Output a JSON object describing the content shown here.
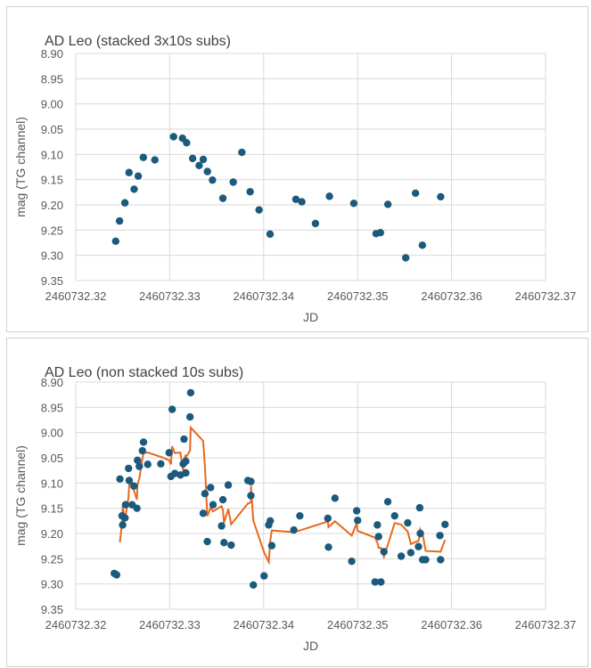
{
  "chart_data": [
    {
      "type": "scatter",
      "title": "AD Leo (stacked 3x10s subs)",
      "xlabel": "JD",
      "ylabel": "mag (TG channel)",
      "xlim": [
        2460732.32,
        2460732.37
      ],
      "ylim": [
        8.9,
        9.35
      ],
      "y_reversed": true,
      "grid": true,
      "xticks": [
        "2460732.32",
        "2460732.33",
        "2460732.34",
        "2460732.35",
        "2460732.36",
        "2460732.37"
      ],
      "yticks": [
        "8.90",
        "8.95",
        "9.00",
        "9.05",
        "9.10",
        "9.15",
        "9.20",
        "9.25",
        "9.30",
        "9.35"
      ],
      "marker_color": "#1b5a7d",
      "x_offset_base": 2460732,
      "points": [
        [
          0.32425,
          9.272
        ],
        [
          0.32466,
          9.232
        ],
        [
          0.32523,
          9.196
        ],
        [
          0.32567,
          9.136
        ],
        [
          0.32621,
          9.169
        ],
        [
          0.32665,
          9.143
        ],
        [
          0.32719,
          9.106
        ],
        [
          0.32842,
          9.111
        ],
        [
          0.33041,
          9.065
        ],
        [
          0.33136,
          9.068
        ],
        [
          0.3318,
          9.077
        ],
        [
          0.33244,
          9.108
        ],
        [
          0.33313,
          9.122
        ],
        [
          0.33357,
          9.11
        ],
        [
          0.33401,
          9.134
        ],
        [
          0.33455,
          9.151
        ],
        [
          0.33566,
          9.187
        ],
        [
          0.33676,
          9.155
        ],
        [
          0.33768,
          9.096
        ],
        [
          0.33856,
          9.174
        ],
        [
          0.33951,
          9.21
        ],
        [
          0.34068,
          9.258
        ],
        [
          0.34343,
          9.189
        ],
        [
          0.34406,
          9.194
        ],
        [
          0.34551,
          9.237
        ],
        [
          0.347,
          9.183
        ],
        [
          0.34959,
          9.197
        ],
        [
          0.35196,
          9.257
        ],
        [
          0.35243,
          9.255
        ],
        [
          0.35322,
          9.199
        ],
        [
          0.35512,
          9.305
        ],
        [
          0.35616,
          9.177
        ],
        [
          0.35689,
          9.28
        ],
        [
          0.35884,
          9.184
        ]
      ]
    },
    {
      "type": "scatter",
      "title": "AD Leo (non stacked 10s subs)",
      "xlabel": "JD",
      "ylabel": "mag (TG channel)",
      "xlim": [
        2460732.32,
        2460732.37
      ],
      "ylim": [
        8.9,
        9.35
      ],
      "y_reversed": true,
      "grid": true,
      "xticks": [
        "2460732.32",
        "2460732.33",
        "2460732.34",
        "2460732.35",
        "2460732.36",
        "2460732.37"
      ],
      "yticks": [
        "8.90",
        "8.95",
        "9.00",
        "9.05",
        "9.10",
        "9.15",
        "9.20",
        "9.25",
        "9.30",
        "9.35"
      ],
      "marker_color": "#1b5a7d",
      "trendline": {
        "type": "moving_average",
        "period": 3,
        "color": "#e8681e"
      },
      "x_offset_base": 2460732,
      "points": [
        [
          0.3241,
          9.279
        ],
        [
          0.32435,
          9.282
        ],
        [
          0.3247,
          9.092
        ],
        [
          0.32492,
          9.165
        ],
        [
          0.32499,
          9.183
        ],
        [
          0.32524,
          9.169
        ],
        [
          0.3253,
          9.143
        ],
        [
          0.32562,
          9.071
        ],
        [
          0.32569,
          9.095
        ],
        [
          0.326,
          9.143
        ],
        [
          0.32619,
          9.106
        ],
        [
          0.32651,
          9.15
        ],
        [
          0.32657,
          9.055
        ],
        [
          0.32676,
          9.067
        ],
        [
          0.32709,
          9.036
        ],
        [
          0.32721,
          9.019
        ],
        [
          0.32766,
          9.063
        ],
        [
          0.32905,
          9.062
        ],
        [
          0.32994,
          9.04
        ],
        [
          0.33013,
          9.087
        ],
        [
          0.33026,
          8.954
        ],
        [
          0.33054,
          9.081
        ],
        [
          0.33114,
          9.084
        ],
        [
          0.33143,
          9.062
        ],
        [
          0.33152,
          9.013
        ],
        [
          0.33171,
          9.057
        ],
        [
          0.33171,
          9.08
        ],
        [
          0.33216,
          8.969
        ],
        [
          0.33223,
          8.921
        ],
        [
          0.33356,
          9.16
        ],
        [
          0.33375,
          9.121
        ],
        [
          0.334,
          9.216
        ],
        [
          0.33435,
          9.109
        ],
        [
          0.33461,
          9.143
        ],
        [
          0.33552,
          9.185
        ],
        [
          0.33566,
          9.133
        ],
        [
          0.33578,
          9.218
        ],
        [
          0.33623,
          9.104
        ],
        [
          0.33654,
          9.223
        ],
        [
          0.33832,
          9.095
        ],
        [
          0.33864,
          9.097
        ],
        [
          0.33864,
          9.125
        ],
        [
          0.3389,
          9.302
        ],
        [
          0.34004,
          9.284
        ],
        [
          0.34054,
          9.183
        ],
        [
          0.3407,
          9.175
        ],
        [
          0.34086,
          9.224
        ],
        [
          0.34321,
          9.193
        ],
        [
          0.34385,
          9.165
        ],
        [
          0.34683,
          9.17
        ],
        [
          0.3469,
          9.227
        ],
        [
          0.34759,
          9.13
        ],
        [
          0.34937,
          9.255
        ],
        [
          0.3499,
          9.155
        ],
        [
          0.35,
          9.174
        ],
        [
          0.35185,
          9.296
        ],
        [
          0.3521,
          9.183
        ],
        [
          0.35223,
          9.206
        ],
        [
          0.35248,
          9.296
        ],
        [
          0.3528,
          9.236
        ],
        [
          0.35321,
          9.137
        ],
        [
          0.35394,
          9.165
        ],
        [
          0.35464,
          9.245
        ],
        [
          0.35533,
          9.179
        ],
        [
          0.35566,
          9.238
        ],
        [
          0.35648,
          9.226
        ],
        [
          0.35661,
          9.149
        ],
        [
          0.35667,
          9.2
        ],
        [
          0.35692,
          9.252
        ],
        [
          0.35724,
          9.252
        ],
        [
          0.35876,
          9.204
        ],
        [
          0.35883,
          9.252
        ],
        [
          0.3593,
          9.182
        ]
      ]
    }
  ]
}
